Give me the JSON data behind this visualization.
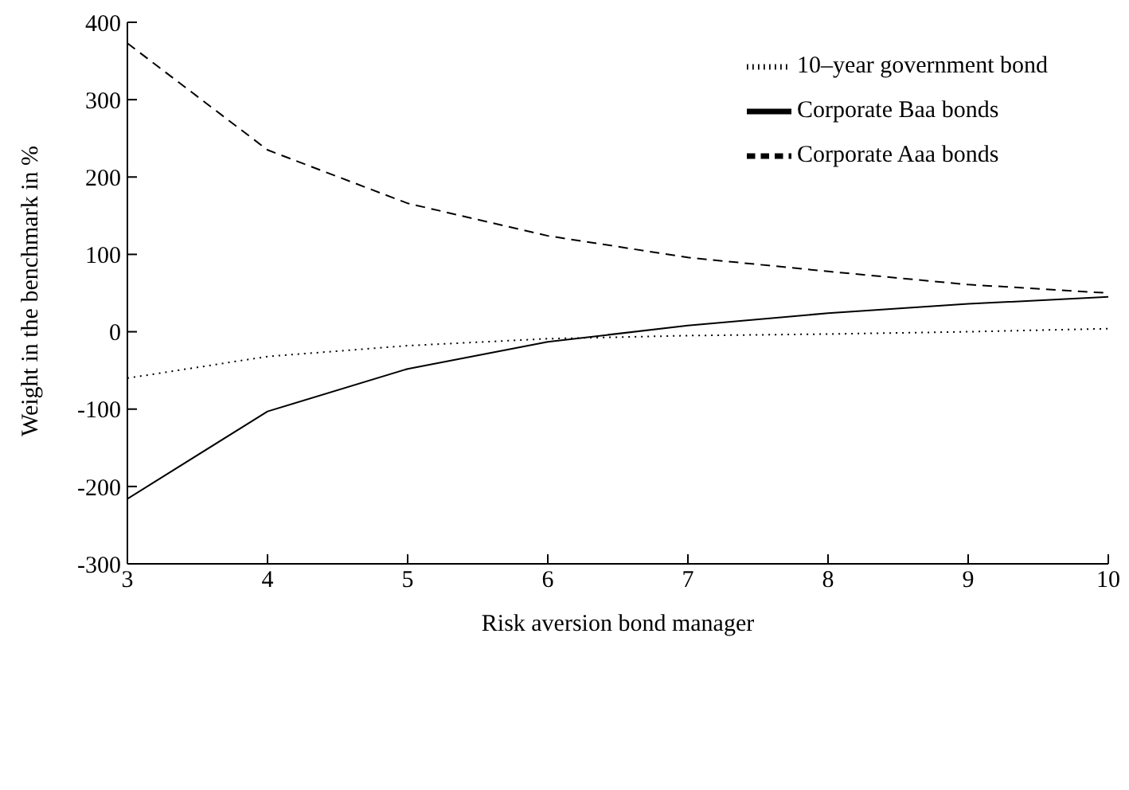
{
  "chart_data": {
    "type": "line",
    "xlabel": "Risk aversion bond manager",
    "ylabel": "Weight in the benchmark in %",
    "x": [
      3,
      4,
      5,
      6,
      7,
      8,
      9,
      10
    ],
    "series": [
      {
        "name": "10–year government bond",
        "color": "#000000",
        "line_style": "dotted",
        "values": [
          -60,
          -32,
          -18,
          -9,
          -5,
          -3,
          0,
          4
        ]
      },
      {
        "name": "Corporate Baa bonds",
        "color": "#000000",
        "line_style": "solid",
        "values": [
          -216,
          -103,
          -48,
          -13,
          8,
          24,
          36,
          45
        ]
      },
      {
        "name": "Corporate Aaa bonds",
        "color": "#000000",
        "line_style": "dashed",
        "values": [
          373,
          235,
          166,
          124,
          96,
          78,
          61,
          50
        ]
      }
    ],
    "xlim": [
      3,
      10
    ],
    "xticks": [
      3,
      4,
      5,
      6,
      7,
      8,
      9,
      10
    ],
    "ylim": [
      -300,
      400
    ],
    "yticks": [
      -300,
      -200,
      -100,
      0,
      100,
      200,
      300,
      400
    ],
    "grid": false,
    "legend": "top right",
    "marker": "none"
  }
}
